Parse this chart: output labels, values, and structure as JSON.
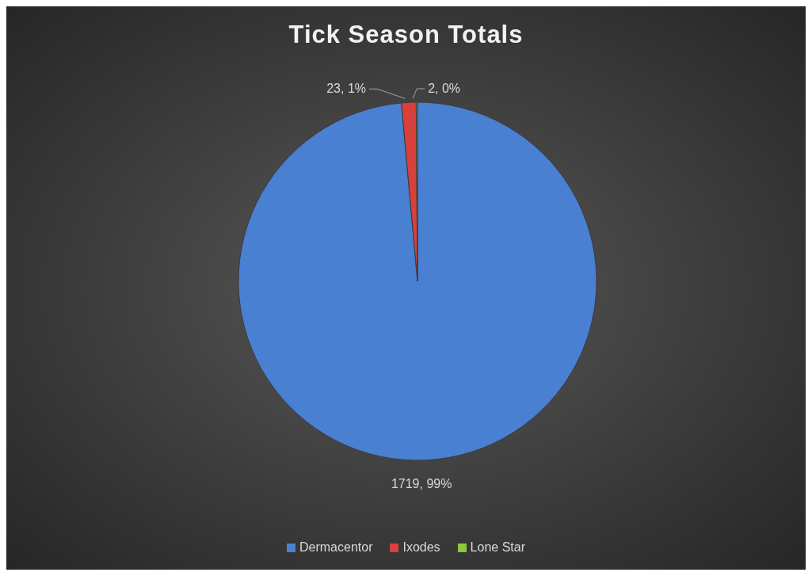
{
  "chart_data": {
    "type": "pie",
    "title": "Tick Season Totals",
    "categories": [
      "Dermacentor",
      "Ixodes",
      "Lone Star"
    ],
    "values": [
      1719,
      23,
      2
    ],
    "colors": [
      "#4a80d2",
      "#d8403b",
      "#8dc63f"
    ],
    "value_labels": [
      "1719, 99%",
      "23, 1%",
      "2, 0%"
    ],
    "legend": "bottom"
  }
}
